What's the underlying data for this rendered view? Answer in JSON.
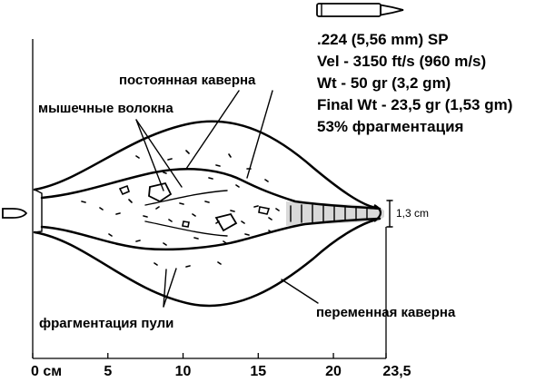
{
  "specs": {
    "caliber": ".224 (5,56 mm) SP",
    "velocity": "Vel - 3150 ft/s (960 m/s)",
    "weight": "Wt - 50 gr (3,2 gm)",
    "final_weight": "Final Wt - 23,5 gr (1,53 gm)",
    "fragmentation": "53% фрагментация"
  },
  "annotations": {
    "permanent_cavity": "постоянная каверна",
    "muscle_fibers": "мышечные волокна",
    "bullet_fragmentation": "фрагментация пули",
    "temporary_cavity": "переменная каверна",
    "diameter": "1,3 cm"
  },
  "axis": {
    "ticks": [
      {
        "value": 0,
        "label": "0 см"
      },
      {
        "value": 5,
        "label": "5"
      },
      {
        "value": 10,
        "label": "10"
      },
      {
        "value": 15,
        "label": "15"
      },
      {
        "value": 20,
        "label": "20"
      },
      {
        "value": 23.5,
        "label": "23,5"
      }
    ]
  }
}
